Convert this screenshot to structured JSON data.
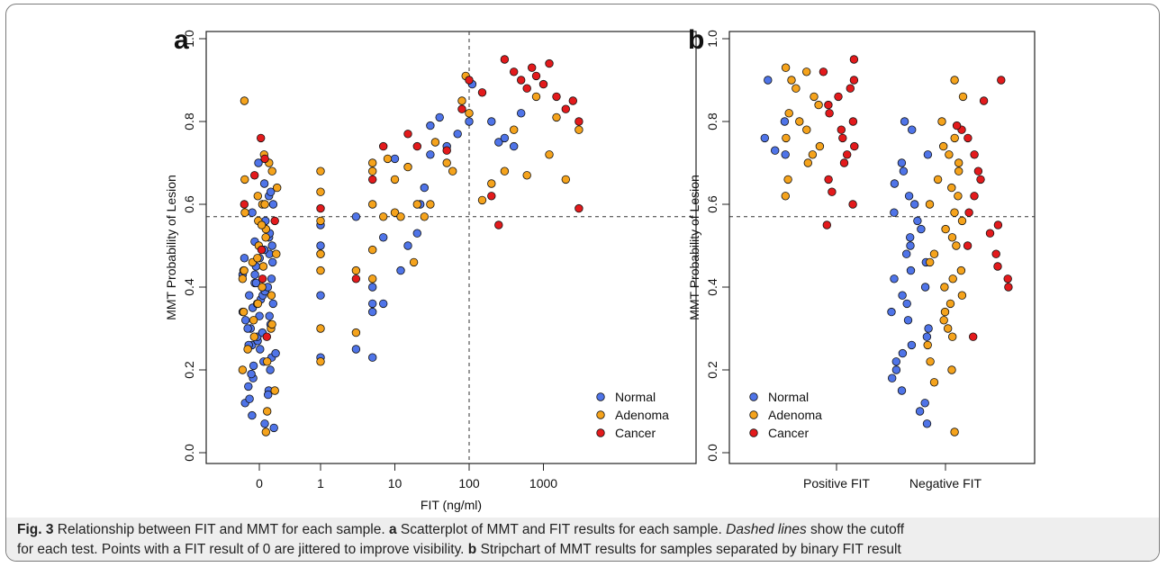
{
  "colors": {
    "normal": "#4f74e8",
    "adenoma": "#f5a31c",
    "cancer": "#e31a1c"
  },
  "chart_data": [
    {
      "panel_label": "a",
      "type": "scatter",
      "xlabel": "FIT (ng/ml)",
      "ylabel": "MMT Probability of Lesion",
      "x_scale": "log (0 plotted at left, jittered)",
      "x_ticks": [
        "0",
        "1",
        "10",
        "100",
        "1000"
      ],
      "y_ticks": [
        "0.0",
        "0.2",
        "0.4",
        "0.6",
        "0.8",
        "1.0"
      ],
      "ylim": [
        0,
        1
      ],
      "cutoffs": {
        "mmt": 0.57,
        "fit": 100
      },
      "legend": {
        "position": "bottom-right",
        "entries": [
          "Normal",
          "Adenoma",
          "Cancer"
        ]
      },
      "series": [
        {
          "name": "Normal",
          "color": "#4f74e8",
          "points_fit0_y": [
            0.07,
            0.06,
            0.09,
            0.12,
            0.13,
            0.15,
            0.16,
            0.18,
            0.2,
            0.21,
            0.22,
            0.23,
            0.24,
            0.25,
            0.26,
            0.27,
            0.28,
            0.29,
            0.3,
            0.31,
            0.32,
            0.33,
            0.34,
            0.35,
            0.36,
            0.37,
            0.38,
            0.39,
            0.4,
            0.41,
            0.42,
            0.43,
            0.44,
            0.45,
            0.46,
            0.47,
            0.48,
            0.49,
            0.5,
            0.51,
            0.52,
            0.53,
            0.55,
            0.56,
            0.58,
            0.6,
            0.62,
            0.63,
            0.65,
            0.7,
            0.14,
            0.19,
            0.26,
            0.33,
            0.38,
            0.43,
            0.47,
            0.36,
            0.41,
            0.3
          ],
          "points": [
            [
              1,
              0.23
            ],
            [
              1,
              0.38
            ],
            [
              1,
              0.48
            ],
            [
              1,
              0.5
            ],
            [
              1,
              0.55
            ],
            [
              3,
              0.25
            ],
            [
              3,
              0.57
            ],
            [
              5,
              0.23
            ],
            [
              5,
              0.34
            ],
            [
              5,
              0.36
            ],
            [
              5,
              0.4
            ],
            [
              7,
              0.36
            ],
            [
              7,
              0.52
            ],
            [
              10,
              0.71
            ],
            [
              12,
              0.44
            ],
            [
              15,
              0.5
            ],
            [
              20,
              0.53
            ],
            [
              22,
              0.6
            ],
            [
              25,
              0.64
            ],
            [
              30,
              0.72
            ],
            [
              30,
              0.79
            ],
            [
              40,
              0.81
            ],
            [
              50,
              0.74
            ],
            [
              70,
              0.77
            ],
            [
              100,
              0.8
            ],
            [
              110,
              0.89
            ],
            [
              200,
              0.8
            ],
            [
              250,
              0.75
            ],
            [
              300,
              0.76
            ],
            [
              400,
              0.74
            ],
            [
              500,
              0.82
            ]
          ]
        },
        {
          "name": "Adenoma",
          "color": "#f5a31c",
          "points_fit0_y": [
            0.05,
            0.1,
            0.15,
            0.2,
            0.22,
            0.25,
            0.28,
            0.3,
            0.32,
            0.34,
            0.36,
            0.38,
            0.4,
            0.42,
            0.44,
            0.46,
            0.48,
            0.5,
            0.52,
            0.54,
            0.56,
            0.58,
            0.6,
            0.62,
            0.64,
            0.66,
            0.68,
            0.7,
            0.72,
            0.85,
            0.31,
            0.45,
            0.55,
            0.6,
            0.47
          ],
          "points": [
            [
              1,
              0.22
            ],
            [
              1,
              0.3
            ],
            [
              1,
              0.44
            ],
            [
              1,
              0.48
            ],
            [
              1,
              0.56
            ],
            [
              1,
              0.63
            ],
            [
              1,
              0.68
            ],
            [
              3,
              0.29
            ],
            [
              3,
              0.44
            ],
            [
              5,
              0.42
            ],
            [
              5,
              0.49
            ],
            [
              5,
              0.6
            ],
            [
              5,
              0.68
            ],
            [
              5,
              0.7
            ],
            [
              7,
              0.57
            ],
            [
              8,
              0.71
            ],
            [
              10,
              0.58
            ],
            [
              10,
              0.66
            ],
            [
              12,
              0.57
            ],
            [
              15,
              0.69
            ],
            [
              18,
              0.46
            ],
            [
              20,
              0.6
            ],
            [
              25,
              0.57
            ],
            [
              30,
              0.6
            ],
            [
              35,
              0.75
            ],
            [
              50,
              0.7
            ],
            [
              60,
              0.68
            ],
            [
              80,
              0.85
            ],
            [
              90,
              0.91
            ],
            [
              100,
              0.82
            ],
            [
              150,
              0.61
            ],
            [
              200,
              0.65
            ],
            [
              300,
              0.68
            ],
            [
              400,
              0.78
            ],
            [
              600,
              0.67
            ],
            [
              800,
              0.86
            ],
            [
              1200,
              0.72
            ],
            [
              1500,
              0.81
            ],
            [
              2000,
              0.66
            ],
            [
              3000,
              0.78
            ]
          ]
        },
        {
          "name": "Cancer",
          "color": "#e31a1c",
          "points_fit0_y": [
            0.28,
            0.42,
            0.49,
            0.56,
            0.6,
            0.67,
            0.71,
            0.76
          ],
          "points": [
            [
              1,
              0.59
            ],
            [
              3,
              0.42
            ],
            [
              5,
              0.66
            ],
            [
              7,
              0.74
            ],
            [
              15,
              0.77
            ],
            [
              20,
              0.74
            ],
            [
              50,
              0.73
            ],
            [
              80,
              0.83
            ],
            [
              100,
              0.9
            ],
            [
              150,
              0.87
            ],
            [
              200,
              0.62
            ],
            [
              250,
              0.55
            ],
            [
              300,
              0.95
            ],
            [
              400,
              0.92
            ],
            [
              500,
              0.9
            ],
            [
              600,
              0.88
            ],
            [
              700,
              0.93
            ],
            [
              800,
              0.91
            ],
            [
              1000,
              0.89
            ],
            [
              1200,
              0.94
            ],
            [
              1500,
              0.86
            ],
            [
              2000,
              0.83
            ],
            [
              2500,
              0.85
            ],
            [
              3000,
              0.8
            ],
            [
              3000,
              0.59
            ]
          ]
        }
      ]
    },
    {
      "panel_label": "b",
      "type": "scatter",
      "subtype": "stripchart",
      "ylabel": "MMT Probability of Lesion",
      "categories": [
        "Positive FIT",
        "Negative FIT"
      ],
      "y_ticks": [
        "0.0",
        "0.2",
        "0.4",
        "0.6",
        "0.8",
        "1.0"
      ],
      "ylim": [
        0,
        1
      ],
      "cutoffs": {
        "mmt": 0.57
      },
      "legend": {
        "position": "bottom-left",
        "entries": [
          "Normal",
          "Adenoma",
          "Cancer"
        ]
      },
      "series": [
        {
          "name": "Normal",
          "color": "#4f74e8",
          "positive": [
            0.9,
            0.8,
            0.73,
            0.72,
            0.76
          ],
          "negative": [
            0.07,
            0.1,
            0.12,
            0.15,
            0.18,
            0.2,
            0.22,
            0.24,
            0.26,
            0.28,
            0.3,
            0.32,
            0.34,
            0.36,
            0.38,
            0.4,
            0.42,
            0.44,
            0.46,
            0.48,
            0.5,
            0.52,
            0.54,
            0.56,
            0.58,
            0.6,
            0.62,
            0.65,
            0.68,
            0.7,
            0.72,
            0.8,
            0.78
          ]
        },
        {
          "name": "Adenoma",
          "color": "#f5a31c",
          "positive": [
            0.62,
            0.66,
            0.7,
            0.72,
            0.74,
            0.76,
            0.78,
            0.8,
            0.82,
            0.84,
            0.86,
            0.88,
            0.9,
            0.92,
            0.93
          ],
          "negative": [
            0.05,
            0.17,
            0.2,
            0.22,
            0.26,
            0.28,
            0.3,
            0.32,
            0.34,
            0.36,
            0.38,
            0.4,
            0.42,
            0.44,
            0.46,
            0.48,
            0.5,
            0.52,
            0.54,
            0.56,
            0.58,
            0.6,
            0.62,
            0.64,
            0.66,
            0.68,
            0.7,
            0.72,
            0.74,
            0.76,
            0.8,
            0.86,
            0.9
          ]
        },
        {
          "name": "Cancer",
          "color": "#e31a1c",
          "positive": [
            0.55,
            0.6,
            0.63,
            0.66,
            0.7,
            0.72,
            0.74,
            0.76,
            0.78,
            0.8,
            0.82,
            0.84,
            0.86,
            0.88,
            0.9,
            0.92,
            0.95
          ],
          "negative": [
            0.28,
            0.4,
            0.42,
            0.45,
            0.48,
            0.5,
            0.53,
            0.55,
            0.58,
            0.62,
            0.66,
            0.68,
            0.72,
            0.76,
            0.78,
            0.79,
            0.85,
            0.9
          ]
        }
      ]
    }
  ],
  "caption": {
    "fig_label": "Fig. 3",
    "line1_intro": " Relationship between FIT and MMT for each sample. ",
    "line1_a": "a",
    "line1_rest": " Scatterplot of MMT and FIT results for each sample. ",
    "line1_italic": "Dashed lines",
    "line1_tail": " show the cutoff",
    "line2_pre": "for each test. Points with a FIT result of 0 are jittered to improve visibility. ",
    "line2_b": "b",
    "line2_rest": " Stripchart of MMT results for samples separated by binary FIT result"
  }
}
